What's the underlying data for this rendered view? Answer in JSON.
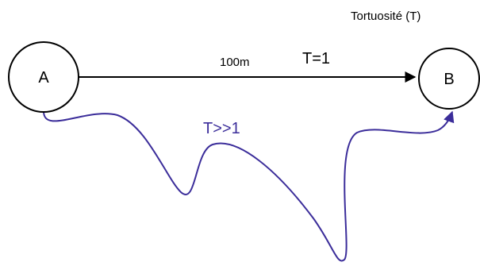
{
  "title": "Tortuosité (T)",
  "nodes": {
    "start": "A",
    "end": "B"
  },
  "straight_path": {
    "distance_label": "100m",
    "tortuosity_label": "T=1",
    "color": "#000000"
  },
  "tortuous_path": {
    "tortuosity_label": "T>>1",
    "color": "#3b2d9a"
  }
}
